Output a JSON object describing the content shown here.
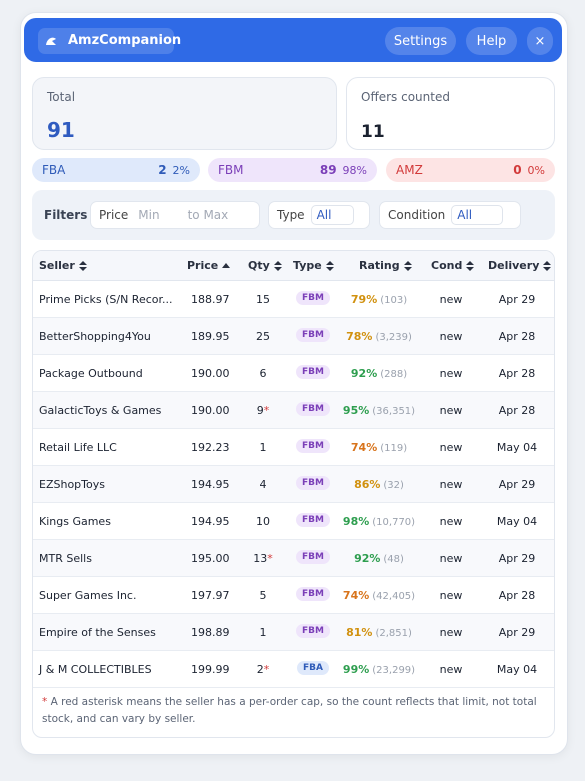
{
  "header": {
    "title": "AmzCompanion",
    "buttons": [
      "Settings",
      "Help",
      "×"
    ]
  },
  "stats": {
    "total_label": "Total",
    "total_value": "91",
    "offers_label": "Offers counted",
    "offers_value": "11"
  },
  "channels": [
    {
      "name": "FBA",
      "count": "2",
      "percent": "2%"
    },
    {
      "name": "FBM",
      "count": "89",
      "percent": "98%"
    },
    {
      "name": "AMZ",
      "count": "0",
      "percent": "0%"
    }
  ],
  "filters": {
    "label": "Filters",
    "price_label": "Price",
    "min_placeholder": "Min",
    "max_placeholder": "to Max",
    "type_label": "Type",
    "type_value": "All",
    "condition_label": "Condition",
    "condition_value": "All"
  },
  "table": {
    "columns": [
      "Seller",
      "Price",
      "Qty",
      "Type",
      "Rating",
      "Cond",
      "Delivery"
    ],
    "rows": [
      {
        "seller": "Prime Picks (S/N Recor...",
        "price": "188.97",
        "qty": "15",
        "type": "FBM",
        "rating": "79%",
        "reviews": "(103)",
        "cond": "new",
        "delivery": "Apr 29"
      },
      {
        "seller": "BetterShopping4You",
        "price": "189.95",
        "qty": "25",
        "type": "FBM",
        "rating": "78%",
        "reviews": "(3,239)",
        "cond": "new",
        "delivery": "Apr 28"
      },
      {
        "seller": "Package Outbound",
        "price": "190.00",
        "qty": "6",
        "type": "FBM",
        "rating": "92%",
        "reviews": "(288)",
        "cond": "new",
        "delivery": "Apr 28"
      },
      {
        "seller": "GalacticToys & Games",
        "price": "190.00",
        "qty": "9",
        "cap": "*",
        "type": "FBM",
        "rating": "95%",
        "reviews": "(36,351)",
        "cond": "new",
        "delivery": "Apr 28"
      },
      {
        "seller": "Retail Life LLC",
        "price": "192.23",
        "qty": "1",
        "type": "FBM",
        "rating": "74%",
        "reviews": "(119)",
        "cond": "new",
        "delivery": "May 04"
      },
      {
        "seller": "EZShopToys",
        "price": "194.95",
        "qty": "4",
        "type": "FBM",
        "rating": "86%",
        "reviews": "(32)",
        "cond": "new",
        "delivery": "Apr 29"
      },
      {
        "seller": "Kings Games",
        "price": "194.95",
        "qty": "10",
        "type": "FBM",
        "rating": "98%",
        "reviews": "(10,770)",
        "cond": "new",
        "delivery": "May 04"
      },
      {
        "seller": "MTR Sells",
        "price": "195.00",
        "qty": "13",
        "cap": "*",
        "type": "FBM",
        "rating": "92%",
        "reviews": "(48)",
        "cond": "new",
        "delivery": "Apr 29"
      },
      {
        "seller": "Super Games Inc.",
        "price": "197.97",
        "qty": "5",
        "type": "FBM",
        "rating": "74%",
        "reviews": "(42,405)",
        "cond": "new",
        "delivery": "Apr 28"
      },
      {
        "seller": "Empire of the Senses",
        "price": "198.89",
        "qty": "1",
        "type": "FBM",
        "rating": "81%",
        "reviews": "(2,851)",
        "cond": "new",
        "delivery": "Apr 29"
      },
      {
        "seller": "J & M COLLECTIBLES",
        "price": "199.99",
        "qty": "2",
        "cap": "*",
        "type": "FBA",
        "rating": "99%",
        "reviews": "(23,299)",
        "cond": "new",
        "delivery": "May 04"
      }
    ]
  },
  "footnote": {
    "marker": "*",
    "text": "A red asterisk means the seller has a per-order cap, so the count reflects that limit, not total stock, and can vary by seller."
  }
}
